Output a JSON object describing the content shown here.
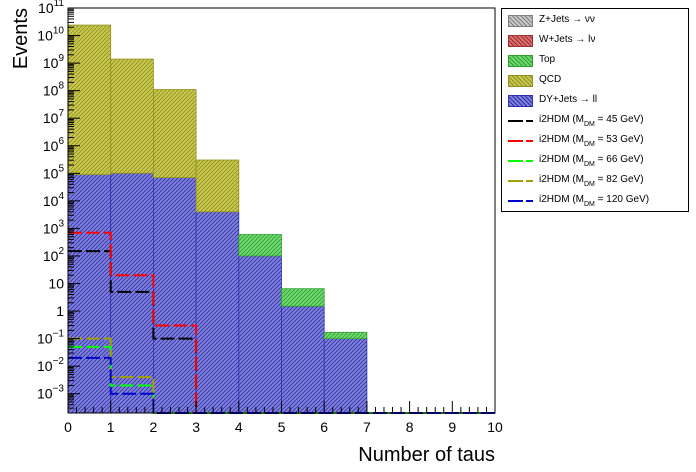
{
  "chart_data": {
    "type": "bar",
    "subtype": "stacked-histogram-with-lines",
    "xlabel": "Number of taus",
    "ylabel": "Events",
    "xlim": [
      0,
      10
    ],
    "ylim_log": [
      0.0002,
      100000000000
    ],
    "yscale": "log",
    "bins": [
      0,
      1,
      2,
      3,
      4,
      5,
      6,
      7,
      8,
      9,
      10
    ],
    "x_tick_labels": [
      "0",
      "1",
      "2",
      "3",
      "4",
      "5",
      "6",
      "7",
      "8",
      "9",
      "10"
    ],
    "y_ticks": [
      {
        "value": 0.001,
        "base": "10",
        "exp": "−3"
      },
      {
        "value": 0.01,
        "base": "10",
        "exp": "−2"
      },
      {
        "value": 0.1,
        "base": "10",
        "exp": "−1"
      },
      {
        "value": 1,
        "base": "1",
        "exp": ""
      },
      {
        "value": 10,
        "base": "10",
        "exp": ""
      },
      {
        "value": 100,
        "base": "10",
        "exp": "2"
      },
      {
        "value": 1000,
        "base": "10",
        "exp": "3"
      },
      {
        "value": 10000,
        "base": "10",
        "exp": "4"
      },
      {
        "value": 100000,
        "base": "10",
        "exp": "5"
      },
      {
        "value": 1000000,
        "base": "10",
        "exp": "6"
      },
      {
        "value": 10000000,
        "base": "10",
        "exp": "7"
      },
      {
        "value": 100000000,
        "base": "10",
        "exp": "8"
      },
      {
        "value": 1000000000,
        "base": "10",
        "exp": "9"
      },
      {
        "value": 10000000000,
        "base": "10",
        "exp": "10"
      },
      {
        "value": 100000000000,
        "base": "10",
        "exp": "11"
      }
    ],
    "stack": [
      {
        "name": "DY+Jets → ll",
        "color": "#8080d8",
        "hatch": "#3030b0",
        "values": [
          90000,
          100000,
          70000,
          4000,
          100,
          1.5,
          0.1,
          0,
          0,
          0
        ]
      },
      {
        "name": "QCD",
        "color": "#c8c850",
        "hatch": "#909020",
        "values": [
          24000000000,
          1400000000,
          110000000,
          300000,
          0,
          0,
          0,
          0,
          0,
          0
        ]
      },
      {
        "name": "Top",
        "color": "#70d870",
        "hatch": "#30a030",
        "values": [
          0,
          0,
          0,
          0,
          500,
          5,
          0.07,
          0,
          0,
          0
        ]
      },
      {
        "name": "W+Jets → lν",
        "color": "#d87070",
        "hatch": "#a03030",
        "values": [
          0,
          0,
          0,
          0,
          0,
          0,
          0,
          0,
          0,
          0
        ]
      },
      {
        "name": "Z+Jets → νν",
        "color": "#c8c8c8",
        "hatch": "#808080",
        "values": [
          0,
          0,
          0,
          0,
          0,
          0,
          0,
          0,
          0,
          0
        ]
      }
    ],
    "lines": [
      {
        "name": "i2HDM (M",
        "sub": "DM",
        "mass": "=  45 GeV)",
        "color": "#000000",
        "values": [
          150,
          5,
          0.1,
          0,
          0,
          0,
          0,
          0,
          0,
          0
        ]
      },
      {
        "name": "i2HDM (M",
        "sub": "DM",
        "mass": "=  53 GeV)",
        "color": "#ff0000",
        "values": [
          700,
          20,
          0.3,
          0,
          0,
          0,
          0,
          0,
          0,
          0
        ]
      },
      {
        "name": "i2HDM (M",
        "sub": "DM",
        "mass": "=  66 GeV)",
        "color": "#00ff00",
        "values": [
          0.05,
          0.002,
          0,
          0,
          0,
          0,
          0,
          0,
          0,
          0
        ]
      },
      {
        "name": "i2HDM (M",
        "sub": "DM",
        "mass": "=  82 GeV)",
        "color": "#a0a000",
        "values": [
          0.1,
          0.004,
          0,
          0,
          0,
          0,
          0,
          0,
          0,
          0
        ]
      },
      {
        "name": "i2HDM (M",
        "sub": "DM",
        "mass": "= 120 GeV)",
        "color": "#0000cc",
        "values": [
          0.02,
          0.001,
          0,
          0,
          0,
          0,
          0,
          0,
          0,
          0
        ]
      }
    ],
    "legend_placement": "top-right outside plot",
    "grid": false
  },
  "legend": {
    "items": [
      {
        "kind": "fill",
        "label": "Z+Jets → νν",
        "color": "#c8c8c8",
        "hatch": "#808080"
      },
      {
        "kind": "fill",
        "label": "W+Jets → lν",
        "color": "#d87070",
        "hatch": "#a03030"
      },
      {
        "kind": "fill",
        "label": "Top",
        "color": "#70d870",
        "hatch": "#30a030"
      },
      {
        "kind": "fill",
        "label": "QCD",
        "color": "#c8c850",
        "hatch": "#909020"
      },
      {
        "kind": "fill",
        "label": "DY+Jets → ll",
        "color": "#8080d8",
        "hatch": "#3030b0"
      },
      {
        "kind": "line",
        "label": "i2HDM (M",
        "sub": "DM",
        "tail": "=  45 GeV)",
        "color": "#000000"
      },
      {
        "kind": "line",
        "label": "i2HDM (M",
        "sub": "DM",
        "tail": "=  53 GeV)",
        "color": "#ff0000"
      },
      {
        "kind": "line",
        "label": "i2HDM (M",
        "sub": "DM",
        "tail": "=  66 GeV)",
        "color": "#00ff00"
      },
      {
        "kind": "line",
        "label": "i2HDM (M",
        "sub": "DM",
        "tail": "=  82 GeV)",
        "color": "#a0a000"
      },
      {
        "kind": "line",
        "label": "i2HDM (M",
        "sub": "DM",
        "tail": "= 120 GeV)",
        "color": "#0000cc"
      }
    ]
  }
}
